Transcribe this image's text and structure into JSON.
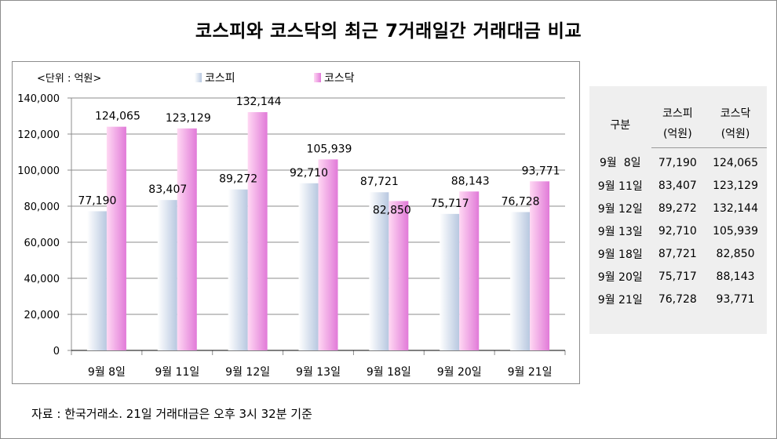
{
  "title": "코스피와 코스닥의 최근 7거래일간 거래대금 비교",
  "source_note": "자료 : 한국거래소. 21일 거래대금은 오후 3시 32분 기준",
  "colors": {
    "kospi_light": "#ffffff",
    "kospi_dark": "#b8c8e0",
    "kosdaq_light": "#ffd8f3",
    "kosdaq_dark": "#e17ad8",
    "grid": "#8c8c8c",
    "table_bg": "#efefef"
  },
  "chart_data": {
    "type": "bar",
    "unit_label": "<단위 : 억원>",
    "categories": [
      "9월 8일",
      "9월 11일",
      "9월 12일",
      "9월 13일",
      "9월 18일",
      "9월 20일",
      "9월 21일"
    ],
    "series": [
      {
        "name": "코스피",
        "values": [
          77190,
          83407,
          89272,
          92710,
          87721,
          75717,
          76728
        ],
        "labels": [
          "77,190",
          "83,407",
          "89,272",
          "92,710",
          "87,721",
          "75,717",
          "76,728"
        ]
      },
      {
        "name": "코스닥",
        "values": [
          124065,
          123129,
          132144,
          105939,
          82850,
          88143,
          93771
        ],
        "labels": [
          "124,065",
          "123,129",
          "132,144",
          "105,939",
          "82,850",
          "88,143",
          "93,771"
        ]
      }
    ],
    "ylim": [
      0,
      140000
    ],
    "yticks": [
      0,
      20000,
      40000,
      60000,
      80000,
      100000,
      120000,
      140000
    ],
    "ytick_labels": [
      "0",
      "20,000",
      "40,000",
      "60,000",
      "80,000",
      "100,000",
      "120,000",
      "140,000"
    ],
    "grid": true,
    "legend_position": "top-center"
  },
  "table": {
    "header_col1": "구분",
    "header_kospi": [
      "코스피",
      "(억원)"
    ],
    "header_kosdaq": [
      "코스닥",
      "(억원)"
    ],
    "rows": [
      {
        "date": "9월  8일",
        "kospi": "77,190",
        "kosdaq": "124,065"
      },
      {
        "date": "9월 11일",
        "kospi": "83,407",
        "kosdaq": "123,129"
      },
      {
        "date": "9월 12일",
        "kospi": "89,272",
        "kosdaq": "132,144"
      },
      {
        "date": "9월 13일",
        "kospi": "92,710",
        "kosdaq": "105,939"
      },
      {
        "date": "9월 18일",
        "kospi": "87,721",
        "kosdaq": "82,850"
      },
      {
        "date": "9월 20일",
        "kospi": "75,717",
        "kosdaq": "88,143"
      },
      {
        "date": "9월 21일",
        "kospi": "76,728",
        "kosdaq": "93,771"
      }
    ]
  }
}
